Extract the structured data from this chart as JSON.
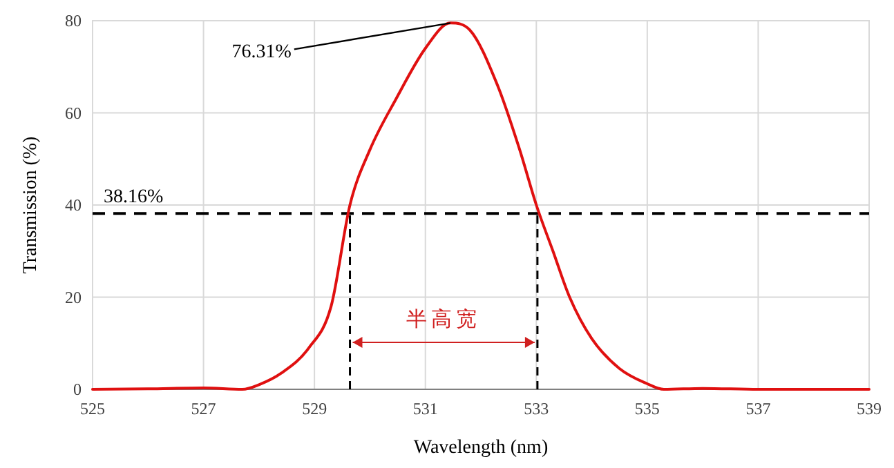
{
  "chart_data": {
    "type": "line",
    "xlabel": "Wavelength  (nm)",
    "ylabel": "Transmission  (%)",
    "x": [
      525,
      526,
      527,
      527.7,
      528,
      528.4,
      528.9,
      529.3,
      529.64,
      530,
      530.47,
      531,
      531.45,
      531.8,
      532.3,
      532.7,
      533.0,
      533.3,
      533.6,
      534,
      534.5,
      535,
      535.3,
      536,
      537,
      538,
      539
    ],
    "series": [
      {
        "color": "#e01010",
        "values": [
          0,
          0.1,
          0.3,
          0,
          1,
          3.5,
          9,
          18,
          40,
          52,
          63,
          74,
          79.5,
          78,
          66,
          52,
          40,
          30,
          20,
          11,
          4.5,
          1.2,
          0,
          0.2,
          0,
          0,
          0
        ]
      }
    ],
    "xlim": [
      525,
      539
    ],
    "ylim": [
      0,
      80
    ],
    "xticks": [
      525,
      527,
      529,
      531,
      533,
      535,
      537,
      539
    ],
    "yticks": [
      0,
      20,
      40,
      60,
      80
    ],
    "grid": true,
    "ref_lines": [
      {
        "axis": "y",
        "value": 38.16,
        "label": "38.16%",
        "color": "#000000",
        "line_style": "dashed"
      },
      {
        "axis": "x",
        "value": 529.64,
        "color": "#000000",
        "line_style": "dashed"
      },
      {
        "axis": "x",
        "value": 533.02,
        "color": "#000000",
        "line_style": "dashed"
      }
    ],
    "annotations": [
      {
        "text": "76.31%",
        "x": 531.45,
        "y": 79.5
      },
      "半高宽"
    ]
  }
}
